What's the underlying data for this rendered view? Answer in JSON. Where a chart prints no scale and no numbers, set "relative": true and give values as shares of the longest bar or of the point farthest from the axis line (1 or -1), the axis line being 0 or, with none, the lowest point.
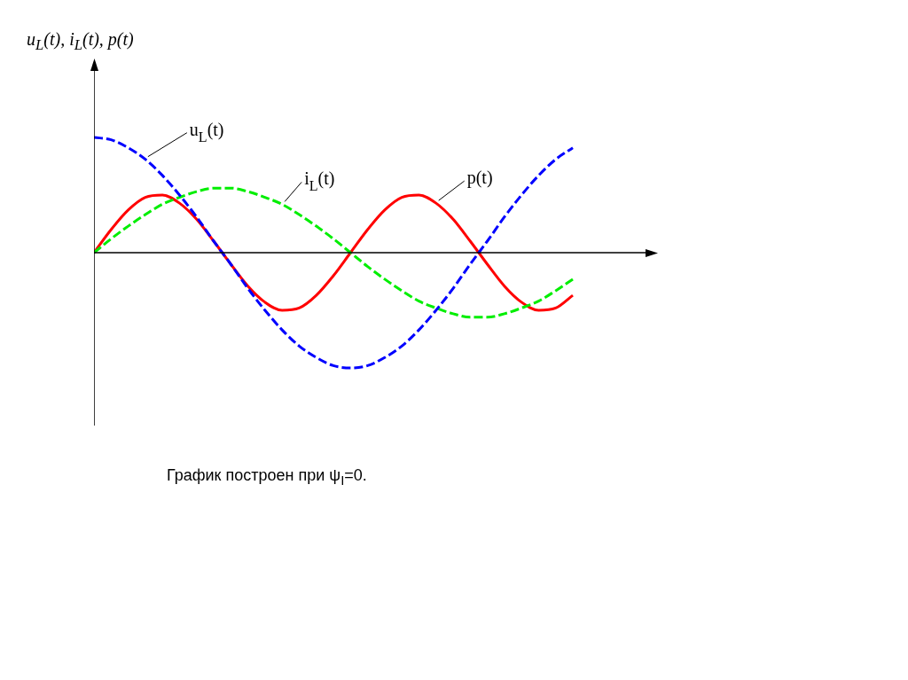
{
  "chart_data": {
    "type": "line",
    "relative": true,
    "ylabel": "u$_{L}$(t), i$_{L}$(t), p(t)",
    "annotations": [
      "График построен при ψ$_{I}$=0."
    ],
    "categories": [
      null,
      null,
      null,
      null,
      null,
      null,
      null,
      null,
      null,
      null,
      null,
      null,
      null,
      null,
      null,
      null,
      null,
      null,
      null,
      null,
      null,
      null,
      null,
      null,
      null,
      null,
      null,
      null,
      null
    ],
    "marker": "none",
    "grid": false,
    "legend": false,
    "series": [
      {
        "name": "u$_{L}$(t)",
        "color": "#0000ff",
        "line_style": "dashed",
        "values": [
          1,
          0.98,
          0.91,
          0.81,
          0.67,
          0.5,
          0.31,
          0.1,
          -0.1,
          -0.31,
          -0.5,
          -0.67,
          -0.81,
          -0.91,
          -0.98,
          -1,
          -0.98,
          -0.91,
          -0.81,
          -0.67,
          -0.5,
          -0.31,
          -0.1,
          0.1,
          0.31,
          0.5,
          0.67,
          0.81,
          0.91
        ]
      },
      {
        "name": "i$_{L}$(t)",
        "color": "#00ee00",
        "line_style": "dashed",
        "values": [
          0,
          0.12,
          0.23,
          0.33,
          0.42,
          0.48,
          0.53,
          0.56,
          0.56,
          0.53,
          0.48,
          0.42,
          0.33,
          0.23,
          0.12,
          0,
          -0.12,
          -0.23,
          -0.33,
          -0.42,
          -0.48,
          -0.53,
          -0.56,
          -0.56,
          -0.53,
          -0.48,
          -0.42,
          -0.33,
          -0.23
        ]
      },
      {
        "name": "p(t)",
        "color": "#ff0000",
        "line_style": "solid",
        "values": [
          0,
          0.2,
          0.37,
          0.48,
          0.5,
          0.43,
          0.29,
          0.1,
          -0.1,
          -0.29,
          -0.43,
          -0.5,
          -0.48,
          -0.37,
          -0.2,
          0,
          0.2,
          0.37,
          0.48,
          0.5,
          0.43,
          0.29,
          0.1,
          -0.1,
          -0.29,
          -0.43,
          -0.5,
          -0.48,
          -0.37
        ]
      }
    ]
  }
}
